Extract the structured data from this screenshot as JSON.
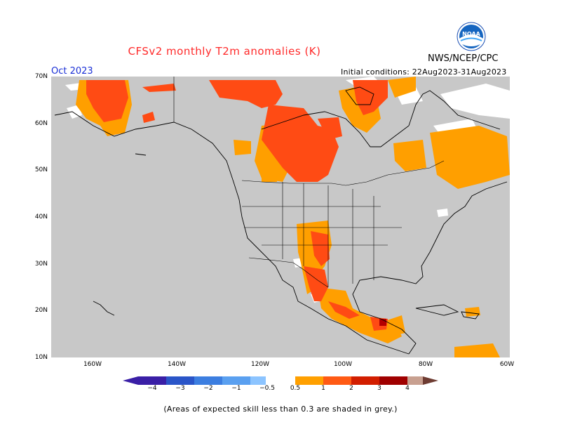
{
  "header": {
    "title": "CFSv2 monthly T2m anomalies (K)",
    "agency": "NWS/NCEP/CPC",
    "period": "Oct 2023",
    "initial_conditions": "Initial conditions: 22Aug2023-31Aug2023",
    "logo_text": "NOAA"
  },
  "map": {
    "lat_labels": [
      "70N",
      "60N",
      "50N",
      "40N",
      "30N",
      "20N",
      "10N"
    ],
    "lon_labels": [
      "160W",
      "140W",
      "120W",
      "100W",
      "80W",
      "60W"
    ],
    "colors": {
      "skill_grey": "#c8c8c8",
      "land_low_anom": "#ffffff",
      "anom_0_5_1": "#ff9f00",
      "anom_1_2": "#ff4b14",
      "anom_2_3": "#b40000",
      "coast": "#000000"
    }
  },
  "colorbar": {
    "ticks": [
      "−4",
      "−3",
      "−2",
      "−1",
      "−0.5",
      "0.5",
      "1",
      "2",
      "3",
      "4"
    ],
    "colors": [
      "#3a1fa6",
      "#2a55c8",
      "#3c7ee0",
      "#5aa0f0",
      "#8cc4ff",
      "#ffffff",
      "#ffa000",
      "#ff5a14",
      "#d21e00",
      "#a00000",
      "#c8a090",
      "#6e3c32"
    ]
  },
  "footnote": "(Areas of expected skill less than 0.3 are shaded in grey.)"
}
